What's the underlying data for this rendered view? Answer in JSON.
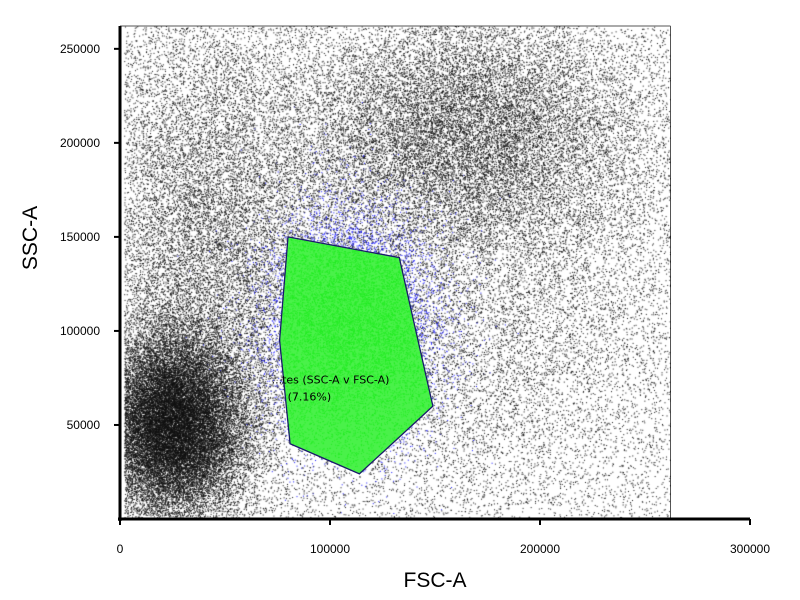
{
  "chart_data": {
    "type": "scatter",
    "plot_kind": "flow cytometry dot plot (density)",
    "xlabel": "FSC-A",
    "ylabel": "SSC-A",
    "xlim": [
      0,
      300000
    ],
    "ylim": [
      0,
      262144
    ],
    "data_extent_max": 262144,
    "x_ticks": [
      {
        "value": 0,
        "label": "0"
      },
      {
        "value": 100000,
        "label": "100000"
      },
      {
        "value": 200000,
        "label": "200000"
      },
      {
        "value": 300000,
        "label": "300000"
      }
    ],
    "y_ticks": [
      {
        "value": 50000,
        "label": "50000"
      },
      {
        "value": 100000,
        "label": "100000"
      },
      {
        "value": 150000,
        "label": "150000"
      },
      {
        "value": 200000,
        "label": "200000"
      },
      {
        "value": 250000,
        "label": "250000"
      }
    ],
    "grid": false,
    "colors": {
      "events": "#111111",
      "gate_fill": "#22ee22",
      "gate_events_dense": "#11dd11",
      "gate_outline": "#1a1a6a",
      "blue_population": "#1010ff"
    },
    "populations": [
      {
        "x_center": 25000,
        "y_center": 50000,
        "x_spread": 18000,
        "y_spread": 25000,
        "weight": 0.32,
        "tone": "black"
      },
      {
        "x_center": 40000,
        "y_center": 150000,
        "x_spread": 30000,
        "y_spread": 65000,
        "weight": 0.16,
        "tone": "black"
      },
      {
        "x_center": 165000,
        "y_center": 205000,
        "x_spread": 45000,
        "y_spread": 35000,
        "weight": 0.2,
        "tone": "black"
      },
      {
        "x_center": 170000,
        "y_center": 100000,
        "x_spread": 55000,
        "y_spread": 55000,
        "weight": 0.09,
        "tone": "black"
      },
      {
        "x_center": 110000,
        "y_center": 105000,
        "x_spread": 22000,
        "y_spread": 32000,
        "weight": 0.08,
        "tone": "blue"
      }
    ],
    "gate": {
      "label": "...tes (SSC-A v FSC-A)",
      "percent_label": "(7.16%)",
      "percent": 7.16,
      "polygon": [
        [
          80000,
          150000
        ],
        [
          133000,
          139000
        ],
        [
          149000,
          60000
        ],
        [
          114000,
          24000
        ],
        [
          81000,
          40000
        ],
        [
          76000,
          95000
        ]
      ]
    }
  }
}
